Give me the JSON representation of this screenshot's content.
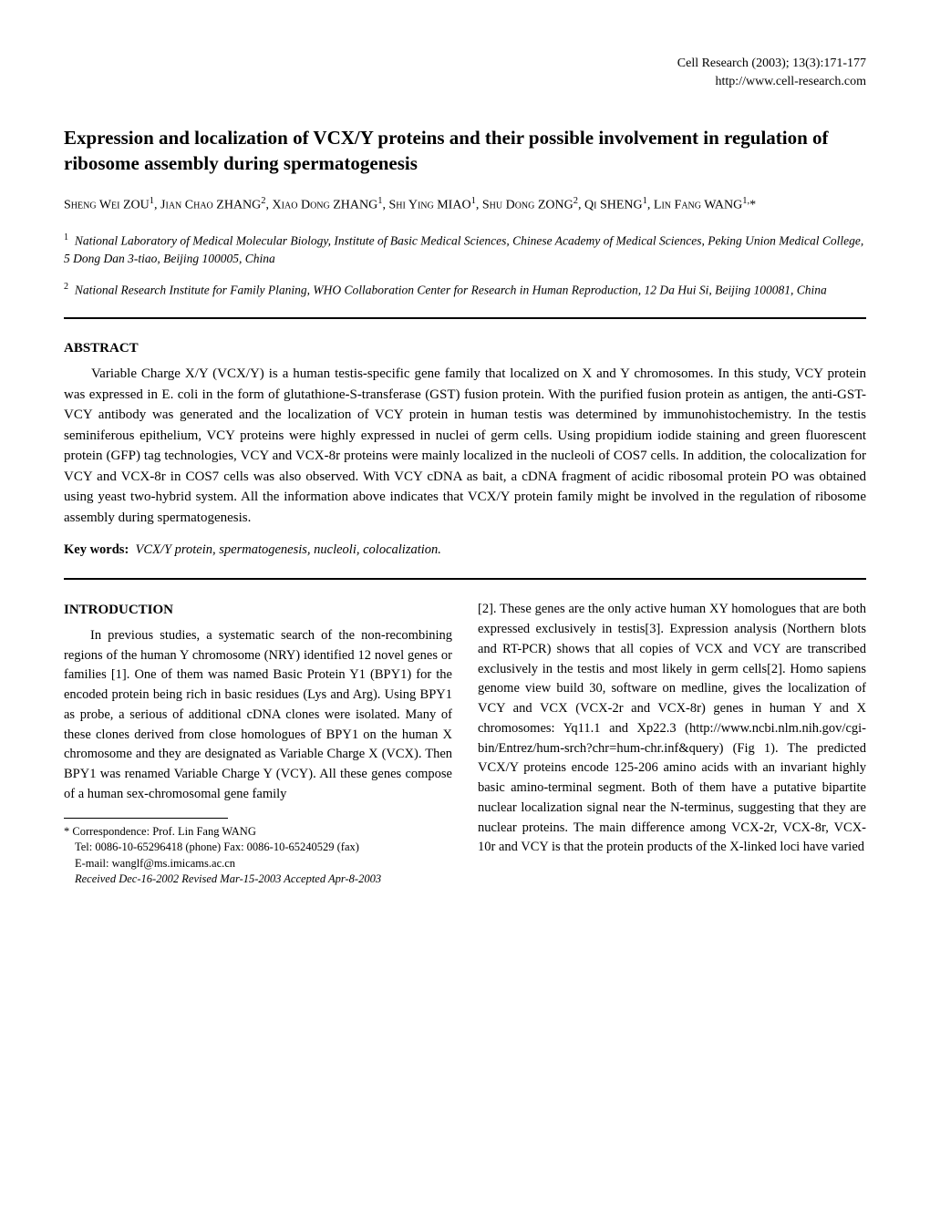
{
  "journal_line1": "Cell Research (2003); 13(3):171-177",
  "journal_line2": "http://www.cell-research.com",
  "title": "Expression and localization of VCX/Y proteins and their possible involvement in regulation of ribosome assembly during spermatogenesis",
  "authors_html": "S<span class='sc'>heng</span> W<span class='sc'>ei</span> ZOU<sup>1</sup>, J<span class='sc'>ian</span> C<span class='sc'>hao</span> ZHANG<sup>2</sup>, X<span class='sc'>iao</span> D<span class='sc'>ong</span> ZHANG<sup>1</sup>, S<span class='sc'>hi</span> Y<span class='sc'>ing</span> MIAO<sup>1</sup>, S<span class='sc'>hu</span> D<span class='sc'>ong</span> ZONG<sup>2</sup>, Q<span class='sc'>i</span> SHENG<sup>1</sup>, L<span class='sc'>in</span> F<span class='sc'>ang</span> WANG<sup>1,</sup>*",
  "affil1": "National Laboratory of Medical Molecular Biology, Institute of Basic Medical Sciences, Chinese Academy of Medical Sciences, Peking Union Medical College, 5 Dong Dan 3-tiao, Beijing 100005, China",
  "affil2": "National Research Institute for Family Planing, WHO Collaboration Center for Research in Human Reproduction, 12 Da Hui Si, Beijing 100081, China",
  "abstract_heading": "ABSTRACT",
  "abstract_body": "Variable Charge X/Y (VCX/Y) is a human testis-specific gene family that localized on X and Y chromosomes. In this study, VCY protein was expressed in E. coli in the form of glutathione-S-transferase (GST) fusion protein. With the purified fusion protein as antigen, the anti-GST-VCY antibody was generated and the localization of VCY protein in human testis was determined by immunohistochemistry. In the testis seminiferous epithelium, VCY proteins were highly expressed in nuclei of germ cells. Using propidium iodide staining and green fluorescent protein (GFP) tag technologies, VCY and VCX-8r proteins were mainly localized in the nucleoli of COS7 cells. In addition, the colocalization for VCY and VCX-8r in COS7 cells was also observed. With VCY cDNA as bait, a cDNA fragment of acidic ribosomal protein PO was obtained using yeast two-hybrid system. All the information above indicates that VCX/Y protein family might be involved in the regulation of ribosome assembly during spermatogenesis.",
  "keywords_label": "Key words:",
  "keywords_value": "VCX/Y protein, spermatogenesis, nucleoli, colocalization.",
  "intro_heading": "INTRODUCTION",
  "intro_col1": "In previous studies, a systematic search of the non-recombining regions of the human Y chromosome (NRY) identified 12 novel genes or families [1]. One of them was named Basic Protein Y1 (BPY1) for the encoded protein being rich in basic residues (Lys and Arg). Using BPY1 as probe, a serious of additional cDNA clones were isolated. Many of these clones derived from close homologues of BPY1 on the human X chromosome and they are designated as Variable Charge X (VCX). Then BPY1 was renamed Variable Charge Y (VCY). All these genes compose of a human sex-chromosomal gene family",
  "intro_col2": "[2]. These genes are the only active human XY homologues that are both expressed exclusively in testis[3]. Expression analysis (Northern blots and RT-PCR) shows that all copies of VCX and VCY are transcribed exclusively in the testis and most likely in germ cells[2]. Homo sapiens genome view build 30, software on medline, gives the localization of VCY and VCX (VCX-2r and VCX-8r) genes in human Y and X chromosomes: Yq11.1 and Xp22.3 (http://www.ncbi.nlm.nih.gov/cgi-bin/Entrez/hum-srch?chr=hum-chr.inf&query) (Fig 1). The predicted VCX/Y proteins encode 125-206 amino acids with an invariant highly basic amino-terminal segment. Both of them have a putative bipartite nuclear localization signal near the N-terminus, suggesting that they are nuclear proteins. The main difference among VCX-2r, VCX-8r, VCX-10r and VCY is that the protein products of the X-linked loci have varied",
  "footnote_corr": "* Correspondence: Prof. Lin Fang WANG",
  "footnote_tel": "Tel: 0086-10-65296418 (phone) Fax: 0086-10-65240529 (fax)",
  "footnote_email": "E-mail: wanglf@ms.imicams.ac.cn",
  "footnote_recv": "Received Dec-16-2002 Revised Mar-15-2003 Accepted Apr-8-2003"
}
